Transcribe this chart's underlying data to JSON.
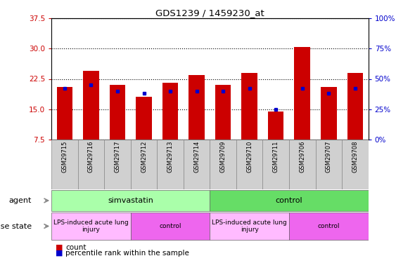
{
  "title": "GDS1239 / 1459230_at",
  "samples": [
    "GSM29715",
    "GSM29716",
    "GSM29717",
    "GSM29712",
    "GSM29713",
    "GSM29714",
    "GSM29709",
    "GSM29710",
    "GSM29711",
    "GSM29706",
    "GSM29707",
    "GSM29708"
  ],
  "count_values": [
    20.5,
    24.5,
    21.0,
    18.0,
    21.5,
    23.5,
    21.0,
    24.0,
    14.5,
    30.5,
    20.5,
    24.0
  ],
  "percentile_values": [
    42,
    45,
    40,
    38,
    40,
    40,
    40,
    42,
    25,
    42,
    38,
    42
  ],
  "ymin": 7.5,
  "ymax": 37.5,
  "yticks_left": [
    7.5,
    15.0,
    22.5,
    30.0,
    37.5
  ],
  "yticks_right": [
    0,
    25,
    50,
    75,
    100
  ],
  "bar_color": "#cc0000",
  "percentile_color": "#0000cc",
  "agent_groups": [
    {
      "label": "simvastatin",
      "start": 0,
      "end": 6,
      "color": "#aaffaa"
    },
    {
      "label": "control",
      "start": 6,
      "end": 12,
      "color": "#66dd66"
    }
  ],
  "disease_groups": [
    {
      "label": "LPS-induced acute lung\ninjury",
      "start": 0,
      "end": 3,
      "color": "#ffbbff"
    },
    {
      "label": "control",
      "start": 3,
      "end": 6,
      "color": "#ee66ee"
    },
    {
      "label": "LPS-induced acute lung\ninjury",
      "start": 6,
      "end": 9,
      "color": "#ffbbff"
    },
    {
      "label": "control",
      "start": 9,
      "end": 12,
      "color": "#ee66ee"
    }
  ],
  "legend_count_label": "count",
  "legend_percentile_label": "percentile rank within the sample",
  "bar_color_hex": "#cc0000",
  "percentile_color_hex": "#0000cc",
  "tick_label_color_left": "#cc0000",
  "tick_label_color_right": "#0000cc",
  "sample_box_color": "#d0d0d0"
}
